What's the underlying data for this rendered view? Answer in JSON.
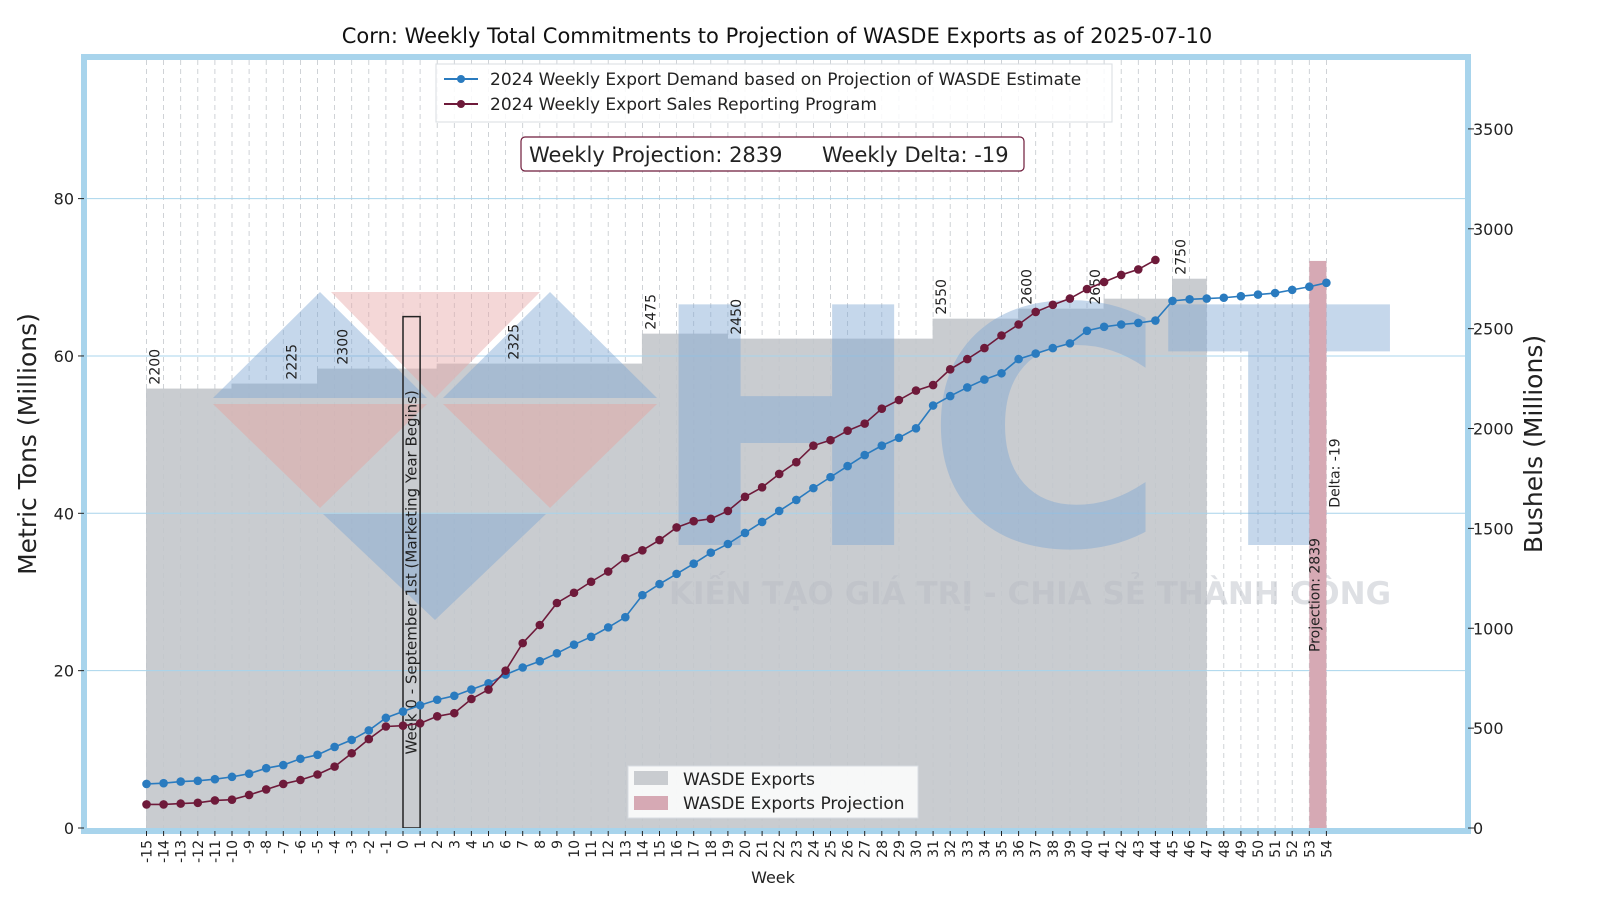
{
  "chart_data": {
    "type": "bar+line",
    "title": "Corn: Weekly Total Commitments to Projection of WASDE Exports as of 2025-07-10",
    "xlabel": "Week",
    "ylabel_left": "Metric Tons (Millions)",
    "ylabel_right": "Bushels (Millions)",
    "ylim_left": [
      0,
      98
    ],
    "ylim_right": [
      0,
      3860
    ],
    "yticks_left": [
      0,
      20,
      40,
      60,
      80
    ],
    "yticks_right": [
      0,
      500,
      1000,
      1500,
      2000,
      2500,
      3000,
      3500
    ],
    "x_weeks": [
      -15,
      -14,
      -13,
      -12,
      -11,
      -10,
      -9,
      -8,
      -7,
      -6,
      -5,
      -4,
      -3,
      -2,
      -1,
      0,
      1,
      2,
      3,
      4,
      5,
      6,
      7,
      8,
      9,
      10,
      11,
      12,
      13,
      14,
      15,
      16,
      17,
      18,
      19,
      20,
      21,
      22,
      23,
      24,
      25,
      26,
      27,
      28,
      29,
      30,
      31,
      32,
      33,
      34,
      35,
      36,
      37,
      38,
      39,
      40,
      41,
      42,
      43,
      44,
      45,
      46,
      47,
      48,
      49,
      50,
      51,
      52,
      53,
      54
    ],
    "x_tick_labels": [
      "-15",
      "-14",
      "-13",
      "-12",
      "-11",
      "-10",
      "-9",
      "-8",
      "-7",
      "-6",
      "-5",
      "-4",
      "-3",
      "-2",
      "-1",
      "0",
      "1",
      "2",
      "3",
      "4",
      "5",
      "6",
      "7",
      "8",
      "9",
      "10",
      "11",
      "12",
      "13",
      "14",
      "15",
      "16",
      "17",
      "18",
      "19",
      "20",
      "21",
      "22",
      "23",
      "24",
      "25",
      "26",
      "27",
      "28",
      "29",
      "30",
      "31",
      "32",
      "33",
      "34",
      "35",
      "36",
      "37",
      "38",
      "39",
      "40",
      "41",
      "42",
      "43",
      "44",
      "45",
      "46",
      "47",
      "48",
      "49",
      "50",
      "51",
      "52",
      "53",
      "54"
    ],
    "wasde_exports_bushels": [
      2200,
      2200,
      2200,
      2200,
      2200,
      2225,
      2225,
      2225,
      2225,
      2225,
      2300,
      2300,
      2300,
      2300,
      2300,
      2300,
      2300,
      2325,
      2325,
      2325,
      2325,
      2325,
      2325,
      2325,
      2325,
      2325,
      2325,
      2325,
      2325,
      2475,
      2475,
      2475,
      2475,
      2475,
      2450,
      2450,
      2450,
      2450,
      2450,
      2450,
      2450,
      2450,
      2450,
      2450,
      2450,
      2450,
      2550,
      2550,
      2550,
      2550,
      2550,
      2600,
      2600,
      2600,
      2600,
      2600,
      2650,
      2650,
      2650,
      2650,
      2750,
      2750
    ],
    "wasde_labels": [
      {
        "week": -15,
        "text": "2200"
      },
      {
        "week": -7,
        "text": "2225"
      },
      {
        "week": -4,
        "text": "2300"
      },
      {
        "week": 6,
        "text": "2325"
      },
      {
        "week": 14,
        "text": "2475"
      },
      {
        "week": 19,
        "text": "2450"
      },
      {
        "week": 31,
        "text": "2550"
      },
      {
        "week": 36,
        "text": "2600"
      },
      {
        "week": 40,
        "text": "2650"
      },
      {
        "week": 45,
        "text": "2750"
      }
    ],
    "projection_bar": {
      "week": 53,
      "bushels": 2839,
      "label": "Projection: 2839",
      "delta_label": "Delta: -19"
    },
    "marketing_year_marker": {
      "week": 0,
      "top_mt": 65,
      "label": "Week 0 - September 1st (Marketing Year Begins)"
    },
    "series": [
      {
        "name": "2024 Weekly Export Demand based on Projection of WASDE Estimate",
        "color": "#2a7bbf",
        "start_week": -15,
        "values": [
          5.6,
          5.7,
          5.9,
          6.0,
          6.2,
          6.5,
          6.9,
          7.6,
          8.0,
          8.8,
          9.3,
          10.3,
          11.2,
          12.4,
          14.0,
          14.8,
          15.6,
          16.3,
          16.8,
          17.6,
          18.4,
          19.5,
          20.4,
          21.2,
          22.2,
          23.3,
          24.3,
          25.5,
          26.8,
          29.6,
          31.0,
          32.3,
          33.6,
          35.0,
          36.1,
          37.5,
          38.9,
          40.3,
          41.7,
          43.2,
          44.6,
          46.0,
          47.4,
          48.6,
          49.6,
          50.8,
          53.7,
          54.9,
          56.0,
          57.0,
          57.8,
          59.6,
          60.3,
          61.0,
          61.6,
          63.2,
          63.7,
          64.0,
          64.2,
          64.5,
          67.0,
          67.2,
          67.3,
          67.4,
          67.6,
          67.8,
          68.0,
          68.4,
          68.8,
          69.3
        ]
      },
      {
        "name": "2024 Weekly Export Sales Reporting Program",
        "color": "#6e1a3a",
        "start_week": -15,
        "values": [
          3.0,
          3.0,
          3.1,
          3.2,
          3.5,
          3.6,
          4.2,
          4.9,
          5.6,
          6.1,
          6.8,
          7.8,
          9.5,
          11.3,
          12.9,
          13.0,
          13.3,
          14.2,
          14.6,
          16.4,
          17.6,
          20.0,
          23.5,
          25.8,
          28.6,
          29.9,
          31.3,
          32.6,
          34.3,
          35.3,
          36.6,
          38.2,
          39.0,
          39.3,
          40.3,
          42.1,
          43.3,
          45.0,
          46.5,
          48.6,
          49.3,
          50.5,
          51.4,
          53.3,
          54.4,
          55.6,
          56.3,
          58.3,
          59.6,
          61.0,
          62.6,
          64.0,
          65.6,
          66.5,
          67.3,
          68.5,
          69.4,
          70.3,
          71.0,
          72.2
        ]
      }
    ],
    "legend_top": [
      "2024 Weekly Export Demand based on Projection of WASDE Estimate",
      "2024 Weekly Export Sales Reporting Program"
    ],
    "legend_bottom": [
      "WASDE Exports",
      "WASDE Exports Projection"
    ],
    "info_box": {
      "projection": "Weekly Projection: 2839",
      "delta": "Weekly Delta: -19"
    },
    "colors": {
      "frame": "#a8d4ec",
      "bars": "#c9ccd0",
      "projection_bar": "#d6a9b4",
      "demand_line": "#2a7bbf",
      "sales_line": "#6e1a3a",
      "info_text": "#6e1a3a"
    }
  },
  "watermark": {
    "brand": "HCT",
    "slogan": "KIẾN TẠO GIÁ TRỊ - CHIA SẺ THÀNH CÔNG"
  }
}
